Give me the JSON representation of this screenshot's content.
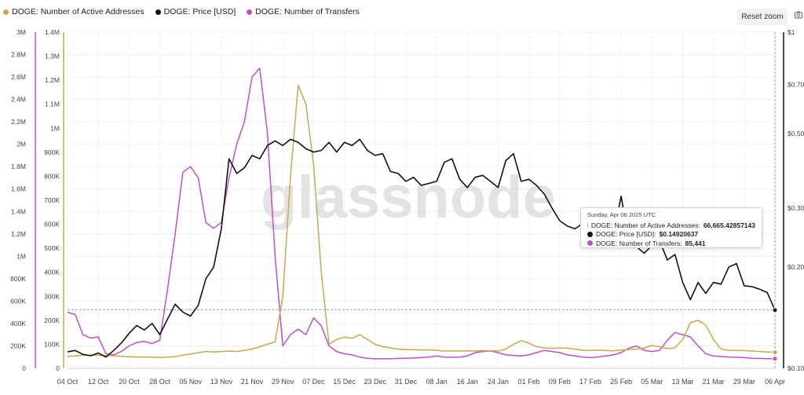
{
  "legend": [
    {
      "label": "DOGE: Number of Active Addresses",
      "color": "#c9a94b"
    },
    {
      "label": "DOGE: Price [USD]",
      "color": "#111111"
    },
    {
      "label": "DOGE: Number of Transfers",
      "color": "#c150c7"
    }
  ],
  "toolbar": {
    "reset_zoom": "Reset zoom",
    "camera_icon": "camera-icon"
  },
  "watermark": "glassnode",
  "tooltip": {
    "date": "Sunday, Apr 06 2025 UTC",
    "rows": [
      {
        "label": "DOGE: Number of Active Addresses:",
        "value": "66,665.42857143",
        "color": "#c9a94b"
      },
      {
        "label": "DOGE: Price [USD]:",
        "value": "$0.14920637",
        "color": "#111111"
      },
      {
        "label": "DOGE: Number of Transfers:",
        "value": "85,441",
        "color": "#c150c7"
      }
    ]
  },
  "chart_data": {
    "type": "line",
    "colors": {
      "active": "#c9a94b",
      "price": "#111111",
      "transfers": "#c150c7"
    },
    "x_ticks": [
      "04 Oct",
      "12 Oct",
      "20 Oct",
      "28 Oct",
      "05 Nov",
      "13 Nov",
      "21 Nov",
      "29 Nov",
      "07 Dec",
      "15 Dec",
      "23 Dec",
      "31 Dec",
      "08 Jan",
      "16 Jan",
      "24 Jan",
      "01 Feb",
      "09 Feb",
      "17 Feb",
      "25 Feb",
      "05 Mar",
      "13 Mar",
      "21 Mar",
      "29 Mar",
      "06 Apr"
    ],
    "y_transfers_ticks": [
      "0",
      "200K",
      "400K",
      "600K",
      "800K",
      "1M",
      "1.2M",
      "1.4M",
      "1.6M",
      "1.8M",
      "2M",
      "2.2M",
      "2.4M",
      "2.6M",
      "2.8M",
      "3M"
    ],
    "y_active_ticks": [
      "0",
      "100K",
      "200K",
      "300K",
      "400K",
      "500K",
      "600K",
      "700K",
      "800K",
      "900K",
      "1M",
      "1.1M",
      "1.2M",
      "1.3M",
      "1.4M"
    ],
    "y_price_ticks": [
      "$0.10",
      "$0.20",
      "$0.30",
      "$0.50",
      "$0.70",
      "$1"
    ],
    "ylim_transfers": [
      0,
      3000000
    ],
    "ylim_active": [
      0,
      1400000
    ],
    "ylim_price": [
      0.1,
      1.0
    ],
    "price_scale": "log",
    "series": [
      {
        "name": "DOGE: Number of Active Addresses",
        "axis": "active",
        "x": [
          0,
          2,
          4,
          6,
          8,
          10,
          12,
          14,
          16,
          18,
          20,
          22,
          24,
          26,
          28,
          30,
          32,
          34,
          36,
          38,
          40,
          42,
          44,
          46,
          48,
          50,
          52,
          54,
          56,
          58,
          60,
          62,
          64,
          66,
          68,
          70,
          72,
          74,
          76,
          78,
          80,
          82,
          84,
          86,
          88,
          90,
          92,
          94,
          96,
          98,
          100,
          102,
          104,
          106,
          108,
          110,
          112,
          114,
          116,
          118,
          120,
          122,
          124,
          126,
          128,
          130,
          132,
          134,
          136,
          138,
          140,
          142,
          144,
          146,
          148,
          150,
          152,
          154,
          156,
          158,
          160,
          162,
          164,
          166,
          168,
          170,
          172,
          174,
          176,
          178,
          180,
          182,
          184
        ],
        "values": [
          50000,
          52000,
          55000,
          55000,
          54000,
          53000,
          52000,
          50000,
          48000,
          47000,
          47000,
          46000,
          45000,
          46000,
          48000,
          55000,
          60000,
          65000,
          70000,
          68000,
          70000,
          72000,
          70000,
          75000,
          80000,
          90000,
          100000,
          110000,
          300000,
          800000,
          1180000,
          1100000,
          850000,
          400000,
          100000,
          120000,
          130000,
          125000,
          140000,
          120000,
          100000,
          90000,
          85000,
          80000,
          78000,
          78000,
          76000,
          77000,
          75000,
          72000,
          73000,
          72000,
          73000,
          72000,
          74000,
          73000,
          72000,
          80000,
          100000,
          115000,
          105000,
          90000,
          85000,
          83000,
          84000,
          84000,
          80000,
          75000,
          74000,
          76000,
          74000,
          73000,
          76000,
          78000,
          80000,
          85000,
          95000,
          90000,
          82000,
          85000,
          120000,
          190000,
          200000,
          180000,
          120000,
          80000,
          75000,
          74000,
          74000,
          72000,
          70000,
          68000,
          66665
        ]
      },
      {
        "name": "DOGE: Price [USD]",
        "axis": "price",
        "x": [
          0,
          2,
          4,
          6,
          8,
          10,
          12,
          14,
          16,
          18,
          20,
          22,
          24,
          26,
          28,
          30,
          32,
          34,
          36,
          38,
          40,
          42,
          44,
          46,
          48,
          50,
          52,
          54,
          56,
          58,
          60,
          62,
          64,
          66,
          68,
          70,
          72,
          74,
          76,
          78,
          80,
          82,
          84,
          86,
          88,
          90,
          92,
          94,
          96,
          98,
          100,
          102,
          104,
          106,
          108,
          110,
          112,
          114,
          116,
          118,
          120,
          122,
          124,
          126,
          128,
          130,
          132,
          134,
          136,
          138,
          140,
          142,
          144,
          146,
          148,
          150,
          152,
          154,
          156,
          158,
          160,
          162,
          164,
          166,
          168,
          170,
          172,
          174,
          176,
          178,
          180,
          182,
          184
        ],
        "values": [
          0.112,
          0.113,
          0.11,
          0.109,
          0.111,
          0.108,
          0.113,
          0.119,
          0.127,
          0.134,
          0.13,
          0.136,
          0.126,
          0.14,
          0.155,
          0.147,
          0.143,
          0.154,
          0.185,
          0.2,
          0.26,
          0.42,
          0.38,
          0.395,
          0.43,
          0.42,
          0.46,
          0.475,
          0.46,
          0.48,
          0.47,
          0.45,
          0.44,
          0.445,
          0.47,
          0.44,
          0.47,
          0.46,
          0.48,
          0.445,
          0.43,
          0.435,
          0.385,
          0.38,
          0.36,
          0.37,
          0.35,
          0.355,
          0.36,
          0.41,
          0.42,
          0.365,
          0.345,
          0.37,
          0.375,
          0.36,
          0.345,
          0.415,
          0.435,
          0.36,
          0.365,
          0.35,
          0.33,
          0.3,
          0.275,
          0.265,
          0.26,
          0.27,
          0.28,
          0.3,
          0.26,
          0.25,
          0.325,
          0.24,
          0.23,
          0.22,
          0.232,
          0.24,
          0.21,
          0.218,
          0.18,
          0.16,
          0.18,
          0.167,
          0.18,
          0.178,
          0.2,
          0.205,
          0.176,
          0.175,
          0.172,
          0.168,
          0.149
        ]
      },
      {
        "name": "DOGE: Number of Transfers",
        "axis": "transfers",
        "x": [
          0,
          2,
          4,
          6,
          8,
          10,
          12,
          14,
          16,
          18,
          20,
          22,
          24,
          26,
          28,
          30,
          32,
          34,
          36,
          38,
          40,
          42,
          44,
          46,
          48,
          50,
          52,
          54,
          56,
          58,
          60,
          62,
          64,
          66,
          68,
          70,
          72,
          74,
          76,
          78,
          80,
          82,
          84,
          86,
          88,
          90,
          92,
          94,
          96,
          98,
          100,
          102,
          104,
          106,
          108,
          110,
          112,
          114,
          116,
          118,
          120,
          122,
          124,
          126,
          128,
          130,
          132,
          134,
          136,
          138,
          140,
          142,
          144,
          146,
          148,
          150,
          152,
          154,
          156,
          158,
          160,
          162,
          164,
          166,
          168,
          170,
          172,
          174,
          176,
          178,
          180,
          182,
          184
        ],
        "values": [
          500000,
          480000,
          300000,
          270000,
          280000,
          130000,
          120000,
          150000,
          200000,
          230000,
          240000,
          220000,
          250000,
          700000,
          1200000,
          1750000,
          1800000,
          1700000,
          1300000,
          1250000,
          1300000,
          1700000,
          2000000,
          2200000,
          2600000,
          2680000,
          2100000,
          1000000,
          200000,
          300000,
          350000,
          300000,
          450000,
          380000,
          200000,
          150000,
          130000,
          120000,
          100000,
          90000,
          85000,
          85000,
          85000,
          88000,
          90000,
          92000,
          95000,
          100000,
          110000,
          100000,
          98000,
          100000,
          110000,
          140000,
          150000,
          155000,
          140000,
          120000,
          115000,
          110000,
          120000,
          140000,
          160000,
          150000,
          140000,
          120000,
          110000,
          100000,
          95000,
          100000,
          110000,
          120000,
          140000,
          180000,
          200000,
          160000,
          150000,
          160000,
          250000,
          320000,
          300000,
          280000,
          200000,
          130000,
          110000,
          105000,
          100000,
          98000,
          95000,
          90000,
          88000,
          86000,
          85441
        ]
      }
    ],
    "reference_line_price": 0.1492,
    "annotations": []
  }
}
